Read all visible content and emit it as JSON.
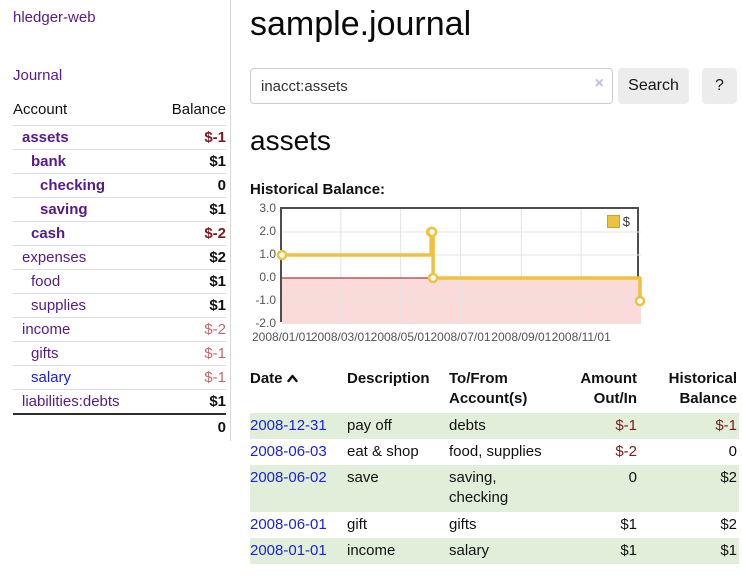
{
  "sidebar": {
    "app_title": "hledger-web",
    "nav": {
      "journal": "Journal"
    },
    "accounts_table": {
      "header": {
        "account": "Account",
        "balance": "Balance"
      },
      "rows": [
        {
          "name": "assets",
          "balance": "$-1"
        },
        {
          "name": "bank",
          "balance": "$1"
        },
        {
          "name": "checking",
          "balance": "0"
        },
        {
          "name": "saving",
          "balance": "$1"
        },
        {
          "name": "cash",
          "balance": "$-2"
        },
        {
          "name": "expenses",
          "balance": "$2"
        },
        {
          "name": "food",
          "balance": "$1"
        },
        {
          "name": "supplies",
          "balance": "$1"
        },
        {
          "name": "income",
          "balance": "$-2"
        },
        {
          "name": "gifts",
          "balance": "$-1"
        },
        {
          "name": "salary",
          "balance": "$-1"
        },
        {
          "name": "liabilities:debts",
          "balance": "$1"
        }
      ],
      "total": "0"
    }
  },
  "header": {
    "title": "sample.journal"
  },
  "search": {
    "value": "inacct:assets",
    "clear_icon": "×",
    "search_button": "Search",
    "help_button": "?"
  },
  "account_page": {
    "heading": "assets",
    "chart_heading": "Historical Balance:"
  },
  "chart_data": {
    "type": "line",
    "step": true,
    "title": "Historical Balance:",
    "series": [
      {
        "name": "$",
        "points": [
          {
            "x": "2008-01-01",
            "y": 1
          },
          {
            "x": "2008-06-01",
            "y": 2
          },
          {
            "x": "2008-06-02",
            "y": 2
          },
          {
            "x": "2008-06-03",
            "y": 0
          },
          {
            "x": "2008-12-31",
            "y": -1
          }
        ]
      }
    ],
    "xlim": [
      "2008-01-01",
      "2009-01-01"
    ],
    "ylim": [
      -2,
      3
    ],
    "x_ticks": [
      {
        "x": "2008-01-01",
        "label": "2008/01/01"
      },
      {
        "x": "2008-03-01",
        "label": "2008/03/01"
      },
      {
        "x": "2008-05-01",
        "label": "2008/05/01"
      },
      {
        "x": "2008-07-01",
        "label": "2008/07/01"
      },
      {
        "x": "2008-09-01",
        "label": "2008/09/01"
      },
      {
        "x": "2008-11-01",
        "label": "2008/11/01"
      }
    ],
    "y_ticks": [
      {
        "v": 3,
        "label": "3.0"
      },
      {
        "v": 2,
        "label": "2.0"
      },
      {
        "v": 1,
        "label": "1.0"
      },
      {
        "v": 0,
        "label": "0.0"
      },
      {
        "v": -1,
        "label": "-1.0"
      },
      {
        "v": -2,
        "label": "-2.0"
      }
    ],
    "legend": {
      "label": "$",
      "position": "top-right"
    },
    "grid": true,
    "colors": {
      "line": "#edc240",
      "negative_region": "#fbdada",
      "zero_line": "#9c0f0f",
      "grid": "#e3e3e3",
      "axis_text": "#545454",
      "plot_border": "#4d4d4d"
    }
  },
  "register": {
    "headers": {
      "date": "Date",
      "description": "Description",
      "tofrom": "To/From Account(s)",
      "amount": "Amount Out/In",
      "balance": "Historical Balance"
    },
    "rows": [
      {
        "date": "2008-12-31",
        "description": "pay off",
        "accounts": "debts",
        "amount": "$-1",
        "balance": "$-1"
      },
      {
        "date": "2008-06-03",
        "description": "eat & shop",
        "accounts": "food, supplies",
        "amount": "$-2",
        "balance": "0"
      },
      {
        "date": "2008-06-02",
        "description": "save",
        "accounts": "saving, checking",
        "amount": "0",
        "balance": "$2"
      },
      {
        "date": "2008-06-01",
        "description": "gift",
        "accounts": "gifts",
        "amount": "$1",
        "balance": "$2"
      },
      {
        "date": "2008-01-01",
        "description": "income",
        "accounts": "salary",
        "amount": "$1",
        "balance": "$1"
      }
    ]
  }
}
